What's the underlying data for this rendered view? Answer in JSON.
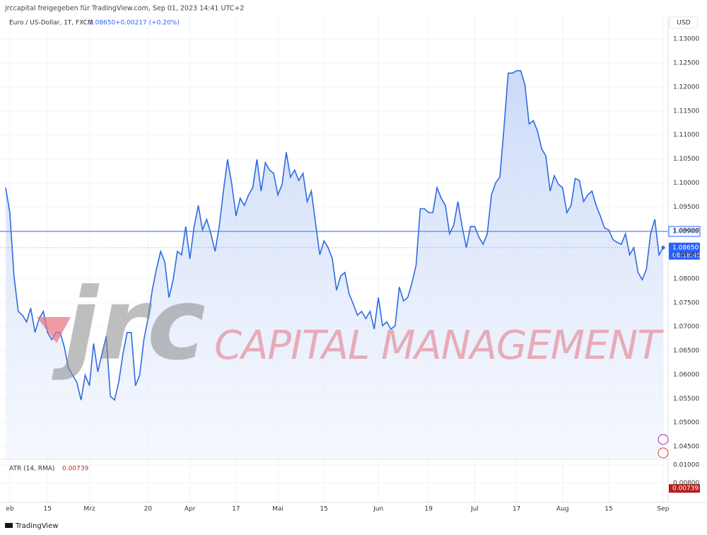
{
  "chart_data": {
    "type": "area",
    "header": "jrccapital freigegeben für TradingView.com, Sep 01, 2023 14:41 UTC+2",
    "symbol": "Euro / US-Dollar, 1T, FXCM",
    "last_price_label": "1.08650",
    "change_label": "+0.00217 (+0.20%)",
    "currency": "USD",
    "countdown": "08:18:45",
    "watermark": [
      "jrc",
      "CAPITAL MANAGEMENT"
    ],
    "brand": "TradingView",
    "color": "#2f6be0",
    "grid": true,
    "categories": [
      null,
      "eb",
      null,
      null,
      null,
      null,
      null,
      null,
      null,
      null,
      "15",
      null,
      null,
      null,
      null,
      null,
      null,
      null,
      null,
      null,
      "Mrz",
      null,
      null,
      null,
      null,
      null,
      null,
      null,
      null,
      null,
      null,
      null,
      null,
      null,
      "20",
      null,
      null,
      null,
      null,
      null,
      null,
      null,
      null,
      null,
      "Apr",
      null,
      null,
      null,
      null,
      null,
      null,
      null,
      null,
      null,
      null,
      "17",
      null,
      null,
      null,
      null,
      null,
      null,
      null,
      null,
      null,
      "Mai",
      null,
      null,
      null,
      null,
      null,
      null,
      null,
      null,
      null,
      null,
      "15",
      null,
      null,
      null,
      null,
      null,
      null,
      null,
      null,
      null,
      null,
      null,
      null,
      "Jun",
      null,
      null,
      null,
      null,
      null,
      null,
      null,
      null,
      null,
      null,
      null,
      "19",
      null,
      null,
      null,
      null,
      null,
      null,
      null,
      null,
      null,
      null,
      "Jul",
      null,
      null,
      null,
      null,
      null,
      null,
      null,
      null,
      null,
      "17",
      null,
      null,
      null,
      null,
      null,
      null,
      null,
      null,
      null,
      null,
      "Aug",
      null,
      null,
      null,
      null,
      null,
      null,
      null,
      null,
      null,
      null,
      "15",
      null,
      null,
      null,
      null,
      null,
      null,
      null,
      null,
      null,
      null,
      null,
      null,
      "Sep"
    ],
    "values": [
      1.099,
      1.0938,
      1.0806,
      1.0732,
      1.0724,
      1.071,
      1.0739,
      1.0688,
      1.0717,
      1.0732,
      1.0688,
      1.0673,
      1.0688,
      1.0688,
      1.0658,
      1.0614,
      1.0599,
      1.0584,
      1.0547,
      1.0599,
      1.0577,
      1.0665,
      1.0606,
      1.0643,
      1.068,
      1.0555,
      1.0547,
      1.0584,
      1.0643,
      1.0688,
      1.0688,
      1.0577,
      1.0599,
      1.0673,
      1.0717,
      1.0776,
      1.082,
      1.0857,
      1.0835,
      1.0761,
      1.0798,
      1.0857,
      1.085,
      1.0909,
      1.0842,
      1.0909,
      1.0953,
      1.0902,
      1.0924,
      1.0894,
      1.0857,
      1.0909,
      1.0983,
      1.1049,
      1.0997,
      1.0931,
      1.0968,
      1.0953,
      1.0975,
      1.099,
      1.1049,
      1.0983,
      1.1042,
      1.1027,
      1.102,
      1.0975,
      1.0997,
      1.1064,
      1.1012,
      1.1027,
      1.1005,
      1.102,
      1.0961,
      1.0983,
      1.0916,
      1.085,
      1.0879,
      1.0865,
      1.0842,
      1.0776,
      1.0806,
      1.0813,
      1.0769,
      1.0747,
      1.0724,
      1.0732,
      1.0717,
      1.0732,
      1.0695,
      1.0761,
      1.0702,
      1.071,
      1.0695,
      1.0702,
      1.0783,
      1.0754,
      1.0761,
      1.0791,
      1.0828,
      1.0946,
      1.0946,
      1.0938,
      1.0938,
      1.099,
      1.0968,
      1.0953,
      1.0894,
      1.0912,
      1.0961,
      1.0909,
      1.0865,
      1.0909,
      1.0909,
      1.0887,
      1.0872,
      1.0894,
      1.0975,
      1.1,
      1.1012,
      1.1116,
      1.1229,
      1.1229,
      1.1234,
      1.1234,
      1.1204,
      1.1123,
      1.113,
      1.1108,
      1.1071,
      1.1056,
      1.0983,
      1.1015,
      1.0997,
      1.099,
      1.0938,
      1.0953,
      1.1009,
      1.1005,
      1.0961,
      1.0975,
      1.0983,
      1.0953,
      1.0931,
      1.0906,
      1.0902,
      1.0882,
      1.0876,
      1.0872,
      1.0894,
      1.085,
      1.0865,
      1.0813,
      1.0798,
      1.082,
      1.0894,
      1.0924,
      1.085,
      1.0865
    ],
    "ylim": [
      1.0425,
      1.1349
    ],
    "yticks": [
      {
        "value": 1.045,
        "label": "1.04500"
      },
      {
        "value": 1.05,
        "label": "1.05000"
      },
      {
        "value": 1.055,
        "label": "1.05500"
      },
      {
        "value": 1.06,
        "label": "1.06000"
      },
      {
        "value": 1.065,
        "label": "1.06500"
      },
      {
        "value": 1.07,
        "label": "1.07000"
      },
      {
        "value": 1.075,
        "label": "1.07500"
      },
      {
        "value": 1.08,
        "label": "1.08000"
      },
      {
        "value": 1.085,
        "label": "1.08500"
      },
      {
        "value": 1.09,
        "label": "1.09000"
      },
      {
        "value": 1.095,
        "label": "1.09500"
      },
      {
        "value": 1.1,
        "label": "1.10000"
      },
      {
        "value": 1.105,
        "label": "1.10500"
      },
      {
        "value": 1.11,
        "label": "1.11000"
      },
      {
        "value": 1.115,
        "label": "1.11500"
      },
      {
        "value": 1.12,
        "label": "1.12000"
      },
      {
        "value": 1.125,
        "label": "1.12500"
      },
      {
        "value": 1.13,
        "label": "1.13000"
      }
    ],
    "hline": {
      "value": 1.08988,
      "label": "1.08988"
    },
    "indicator": {
      "title": "ATR (14, RMA)",
      "value": 0.00739,
      "value_label": "0.00739",
      "ylim": [
        0.00592,
        0.01054
      ],
      "yticks": [
        {
          "value": 0.01,
          "label": "0.01000"
        },
        {
          "value": 0.008,
          "label": "0.00800"
        }
      ]
    }
  }
}
